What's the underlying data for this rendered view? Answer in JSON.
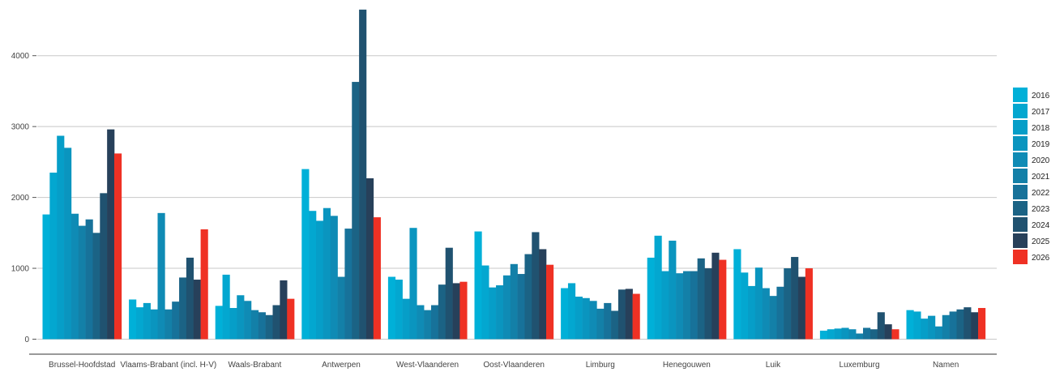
{
  "chart_data": {
    "type": "bar",
    "title": "",
    "xlabel": "",
    "ylabel": "",
    "ylim": [
      -130,
      4680
    ],
    "yticks": [
      0,
      1000,
      2000,
      3000,
      4000
    ],
    "ytick_labels": [
      "0",
      "1000",
      "2000",
      "3000",
      "4000"
    ],
    "grid": "horizontal",
    "legend_position": "right",
    "categories": [
      "Brussel-Hoofdstad",
      "Vlaams-Brabant (incl. H-V)",
      "Waals-Brabant",
      "Antwerpen",
      "West-Vlaanderen",
      "Oost-Vlaanderen",
      "Limburg",
      "Henegouwen",
      "Luik",
      "Luxemburg",
      "Namen"
    ],
    "series": [
      {
        "name": "2016",
        "color": "#00b0d8",
        "values": [
          1760,
          560,
          470,
          2400,
          880,
          1520,
          720,
          1150,
          1270,
          120,
          410
        ]
      },
      {
        "name": "2017",
        "color": "#03a7d0",
        "values": [
          2350,
          450,
          910,
          1810,
          840,
          1040,
          790,
          1460,
          940,
          140,
          390
        ]
      },
      {
        "name": "2018",
        "color": "#069ec8",
        "values": [
          2870,
          510,
          440,
          1670,
          570,
          730,
          600,
          960,
          750,
          150,
          290
        ]
      },
      {
        "name": "2019",
        "color": "#0a95bf",
        "values": [
          2700,
          420,
          620,
          1850,
          1570,
          760,
          580,
          1390,
          1010,
          160,
          330
        ]
      },
      {
        "name": "2020",
        "color": "#0f8bb5",
        "values": [
          1770,
          1780,
          540,
          1740,
          480,
          900,
          540,
          930,
          720,
          140,
          180
        ]
      },
      {
        "name": "2021",
        "color": "#1380a8",
        "values": [
          1600,
          420,
          410,
          880,
          410,
          1060,
          430,
          960,
          610,
          80,
          340
        ]
      },
      {
        "name": "2022",
        "color": "#17729a",
        "values": [
          1690,
          530,
          380,
          1560,
          480,
          920,
          510,
          960,
          740,
          160,
          390
        ]
      },
      {
        "name": "2023",
        "color": "#1b6385",
        "values": [
          1500,
          870,
          340,
          3630,
          770,
          1200,
          400,
          1140,
          1000,
          140,
          420
        ]
      },
      {
        "name": "2024",
        "color": "#205270",
        "values": [
          2060,
          1150,
          480,
          4650,
          1290,
          1510,
          700,
          1000,
          1160,
          380,
          450
        ]
      },
      {
        "name": "2025",
        "color": "#27405a",
        "values": [
          2960,
          840,
          830,
          2270,
          790,
          1270,
          710,
          1220,
          880,
          210,
          380
        ]
      },
      {
        "name": "2026",
        "color": "#ef3124",
        "values": [
          2620,
          1550,
          570,
          1720,
          810,
          1050,
          640,
          1120,
          1000,
          140,
          440
        ]
      }
    ]
  }
}
